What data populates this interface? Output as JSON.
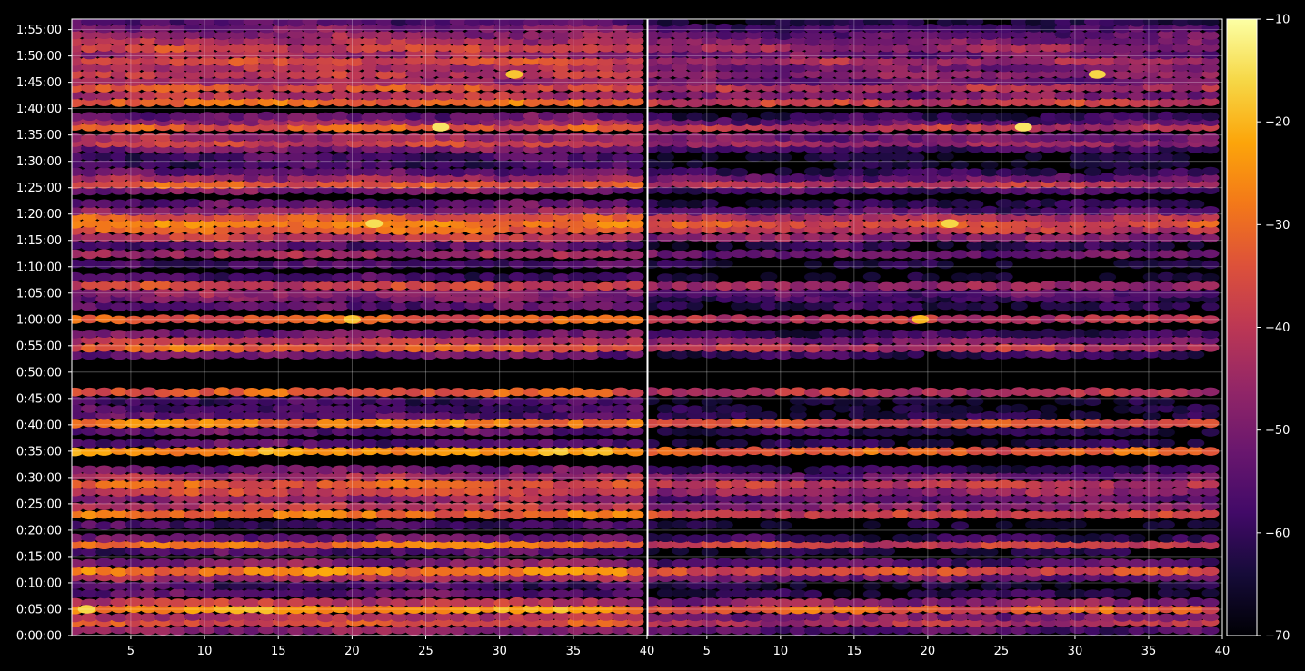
{
  "chart_data": {
    "type": "heatmap",
    "title": "",
    "xlabel": "",
    "ylabel": "",
    "grid": true,
    "background": "#000000",
    "colormap": "inferno",
    "colorbar": {
      "range": [
        -70,
        -10
      ],
      "ticks": [
        "−10",
        "−20",
        "−30",
        "−40",
        "−50",
        "−60",
        "−70"
      ],
      "tick_values": [
        -10,
        -20,
        -30,
        -40,
        -50,
        -60,
        -70
      ]
    },
    "panels": [
      {
        "name": "left",
        "xlim": [
          1,
          40
        ],
        "xticks": [
          5,
          10,
          15,
          20,
          25,
          30,
          35,
          40
        ],
        "xtick_labels": [
          "5",
          "10",
          "15",
          "20",
          "25",
          "30",
          "35",
          "40"
        ]
      },
      {
        "name": "right",
        "xlim": [
          1,
          40
        ],
        "xticks": [
          5,
          10,
          15,
          20,
          25,
          30,
          35,
          40
        ],
        "xtick_labels": [
          "5",
          "10",
          "15",
          "20",
          "25",
          "30",
          "35",
          "40"
        ]
      }
    ],
    "y": {
      "unit": "minutes",
      "ylim": [
        0,
        117
      ],
      "ticks": [
        0,
        5,
        10,
        15,
        20,
        25,
        30,
        35,
        40,
        45,
        50,
        55,
        60,
        65,
        70,
        75,
        80,
        85,
        90,
        95,
        100,
        105,
        110,
        115
      ],
      "tick_labels": [
        "0:00:00",
        "0:05:00",
        "0:10:00",
        "0:15:00",
        "0:20:00",
        "0:25:00",
        "0:30:00",
        "0:35:00",
        "0:40:00",
        "0:45:00",
        "0:50:00",
        "0:55:00",
        "1:00:00",
        "1:05:00",
        "1:10:00",
        "1:15:00",
        "1:20:00",
        "1:25:00",
        "1:30:00",
        "1:35:00",
        "1:40:00",
        "1:45:00",
        "1:50:00",
        "1:55:00"
      ]
    },
    "bands": [
      {
        "t": 1.0,
        "level": -48
      },
      {
        "t": 2.5,
        "level": -35
      },
      {
        "t": 3.5,
        "level": -42
      },
      {
        "t": 5.0,
        "level": -24
      },
      {
        "t": 6.3,
        "level": -40
      },
      {
        "t": 8.0,
        "level": -55
      },
      {
        "t": 9.5,
        "level": -58
      },
      {
        "t": 11.0,
        "level": -44
      },
      {
        "t": 12.2,
        "level": -28
      },
      {
        "t": 13.8,
        "level": -48
      },
      {
        "t": 16.0,
        "level": -56
      },
      {
        "t": 17.3,
        "level": -29
      },
      {
        "t": 18.5,
        "level": -52
      },
      {
        "t": 21.0,
        "level": -58
      },
      {
        "t": 23.0,
        "level": -30
      },
      {
        "t": 24.5,
        "level": -40
      },
      {
        "t": 26.0,
        "level": -46
      },
      {
        "t": 27.3,
        "level": -38
      },
      {
        "t": 28.7,
        "level": -33
      },
      {
        "t": 30.2,
        "level": -44
      },
      {
        "t": 31.5,
        "level": -52
      },
      {
        "t": 35.0,
        "level": -24
      },
      {
        "t": 36.5,
        "level": -55
      },
      {
        "t": 38.7,
        "level": -54
      },
      {
        "t": 40.3,
        "level": -27
      },
      {
        "t": 41.8,
        "level": -55
      },
      {
        "t": 43.0,
        "level": -57
      },
      {
        "t": 44.5,
        "level": -58
      },
      {
        "t": 46.2,
        "level": -33
      },
      {
        "t": 53.3,
        "level": -52
      },
      {
        "t": 54.6,
        "level": -32
      },
      {
        "t": 56.0,
        "level": -42
      },
      {
        "t": 57.3,
        "level": -52
      },
      {
        "t": 60.0,
        "level": -33
      },
      {
        "t": 62.5,
        "level": -54
      },
      {
        "t": 64.0,
        "level": -50
      },
      {
        "t": 65.0,
        "level": -47
      },
      {
        "t": 66.4,
        "level": -38
      },
      {
        "t": 68.0,
        "level": -58
      },
      {
        "t": 70.5,
        "level": -57
      },
      {
        "t": 72.4,
        "level": -44
      },
      {
        "t": 74.0,
        "level": -55
      },
      {
        "t": 75.5,
        "level": -40
      },
      {
        "t": 77.0,
        "level": -32
      },
      {
        "t": 78.2,
        "level": -27
      },
      {
        "t": 79.4,
        "level": -34
      },
      {
        "t": 80.6,
        "level": -48
      },
      {
        "t": 82.0,
        "level": -54
      },
      {
        "t": 84.5,
        "level": -50
      },
      {
        "t": 85.7,
        "level": -33
      },
      {
        "t": 86.9,
        "level": -45
      },
      {
        "t": 88.0,
        "level": -54
      },
      {
        "t": 89.5,
        "level": -58
      },
      {
        "t": 90.8,
        "level": -58
      },
      {
        "t": 92.4,
        "level": -50
      },
      {
        "t": 93.5,
        "level": -38
      },
      {
        "t": 94.5,
        "level": -44
      },
      {
        "t": 96.5,
        "level": -33
      },
      {
        "t": 97.6,
        "level": -46
      },
      {
        "t": 98.5,
        "level": -53
      },
      {
        "t": 101.2,
        "level": -30
      },
      {
        "t": 102.5,
        "level": -42
      },
      {
        "t": 104.0,
        "level": -35
      },
      {
        "t": 105.2,
        "level": -45
      },
      {
        "t": 106.5,
        "level": -40
      },
      {
        "t": 107.8,
        "level": -42
      },
      {
        "t": 109.0,
        "level": -36
      },
      {
        "t": 110.3,
        "level": -44
      },
      {
        "t": 111.5,
        "level": -38
      },
      {
        "t": 112.8,
        "level": -43
      },
      {
        "t": 114.0,
        "level": -46
      },
      {
        "t": 115.3,
        "level": -50
      },
      {
        "t": 116.5,
        "level": -55
      }
    ],
    "right_panel_offset": -8,
    "hot_spots": [
      {
        "panel": "left",
        "x": 26,
        "t": 96.5,
        "level": -14
      },
      {
        "panel": "left",
        "x": 31,
        "t": 106.5,
        "level": -18
      },
      {
        "panel": "left",
        "x": 21.5,
        "t": 78.2,
        "level": -15
      },
      {
        "panel": "left",
        "x": 20,
        "t": 60.0,
        "level": -18
      },
      {
        "panel": "left",
        "x": 2,
        "t": 5.0,
        "level": -16
      },
      {
        "panel": "right",
        "x": 26.5,
        "t": 96.5,
        "level": -14
      },
      {
        "panel": "right",
        "x": 31.5,
        "t": 106.5,
        "level": -16
      },
      {
        "panel": "right",
        "x": 21.5,
        "t": 78.2,
        "level": -16
      },
      {
        "panel": "right",
        "x": 19.5,
        "t": 60.0,
        "level": -20
      }
    ]
  }
}
